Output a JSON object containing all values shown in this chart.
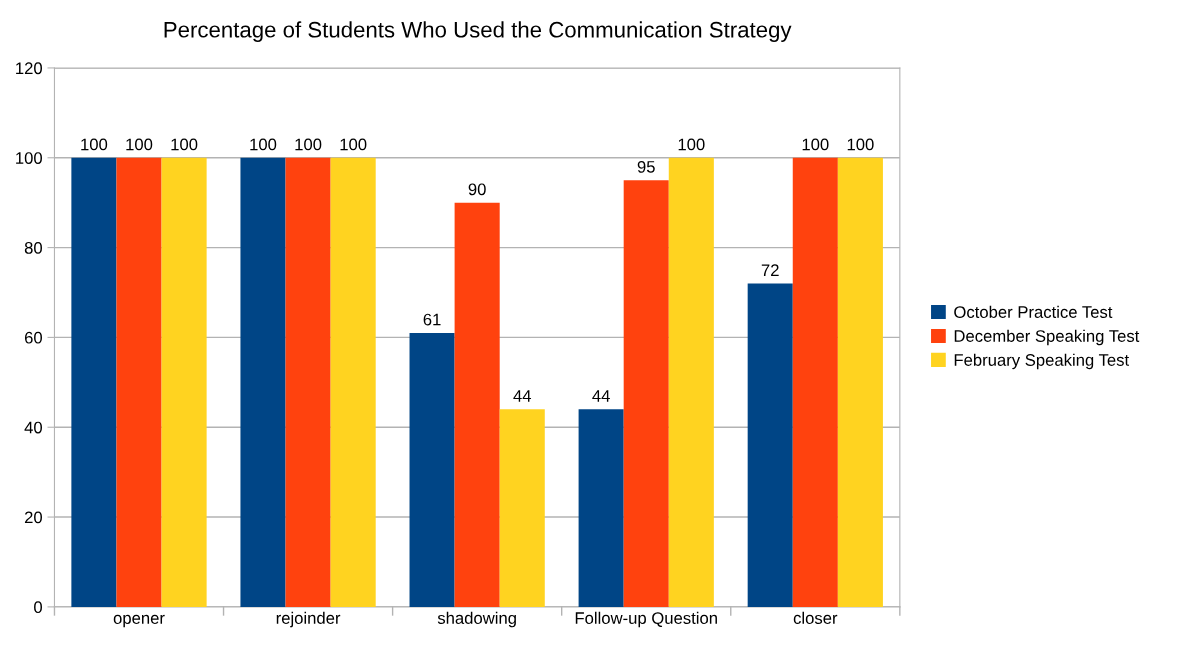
{
  "chart_data": {
    "type": "bar",
    "title": "Percentage of Students Who Used the Communication Strategy",
    "categories": [
      "opener",
      "rejoinder",
      "shadowing",
      "Follow-up Question",
      "closer"
    ],
    "series": [
      {
        "name": "October Practice Test",
        "color": "#004586",
        "values": [
          100,
          100,
          61,
          44,
          72
        ]
      },
      {
        "name": "December Speaking Test",
        "color": "#ff420e",
        "values": [
          100,
          100,
          90,
          95,
          100
        ]
      },
      {
        "name": "February Speaking Test",
        "color": "#ffd320",
        "values": [
          100,
          100,
          44,
          100,
          100
        ]
      }
    ],
    "ylim": [
      0,
      120
    ],
    "yticks": [
      0,
      20,
      40,
      60,
      80,
      100,
      120
    ],
    "grid": "y",
    "legend": "right",
    "data_labels": true
  }
}
